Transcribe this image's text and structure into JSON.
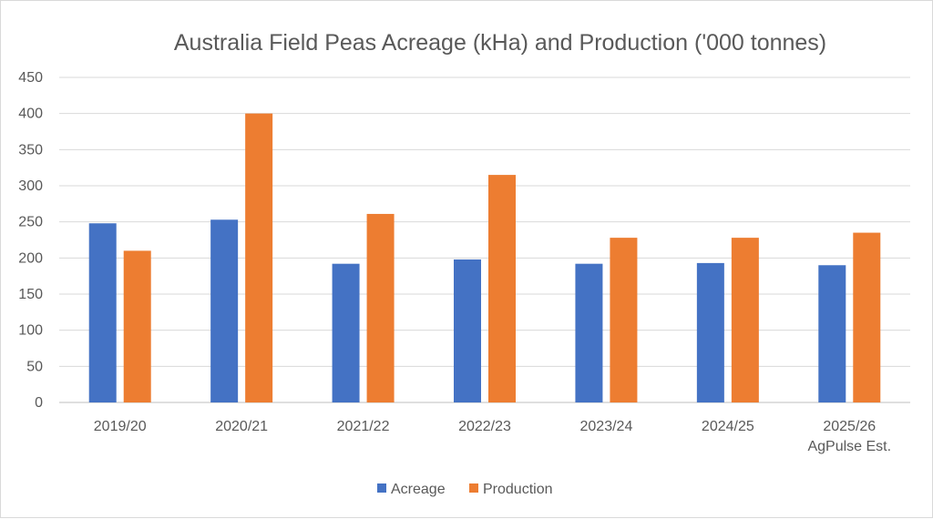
{
  "chart_data": {
    "type": "bar",
    "title": "Australia Field Peas Acreage (kHa) and Production ('000 tonnes)",
    "xlabel": "",
    "ylabel": "",
    "categories": [
      [
        "2019/20"
      ],
      [
        "2020/21"
      ],
      [
        "2021/22"
      ],
      [
        "2022/23"
      ],
      [
        "2023/24"
      ],
      [
        "2024/25"
      ],
      [
        "2025/26",
        "AgPulse Est."
      ]
    ],
    "series": [
      {
        "name": "Acreage",
        "color": "#4472c4",
        "values": [
          248,
          253,
          192,
          198,
          192,
          193,
          190
        ]
      },
      {
        "name": "Production",
        "color": "#ed7d31",
        "values": [
          210,
          400,
          261,
          315,
          228,
          228,
          235
        ]
      }
    ],
    "ylim": [
      0,
      450
    ],
    "yticks": [
      0,
      50,
      100,
      150,
      200,
      250,
      300,
      350,
      400,
      450
    ],
    "grid": true,
    "legend_position": "bottom"
  }
}
